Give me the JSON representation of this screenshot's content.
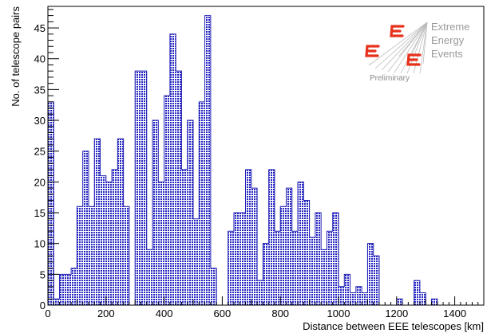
{
  "chart_data": {
    "type": "bar",
    "xlabel": "Distance between EEE telescopes [km]",
    "ylabel": "No. of telescope pairs",
    "xlim": [
      0,
      1500
    ],
    "ylim": [
      0,
      48.5
    ],
    "bin_width": 20,
    "x_ticks": [
      0,
      200,
      400,
      600,
      800,
      1000,
      1200,
      1400
    ],
    "y_ticks": [
      0,
      5,
      10,
      15,
      20,
      25,
      30,
      35,
      40,
      45
    ],
    "values": [
      33,
      1,
      5,
      5,
      6,
      16,
      25,
      16,
      27,
      21,
      20,
      22,
      27,
      16,
      0,
      38,
      38,
      9,
      30,
      20,
      34,
      44,
      38,
      22,
      30,
      14,
      33,
      47,
      6,
      0,
      0,
      12,
      15,
      15,
      22,
      19,
      4,
      10,
      22,
      12,
      16,
      19,
      12,
      20,
      17,
      11,
      15,
      9,
      12,
      15,
      3,
      5,
      2,
      3,
      2,
      10,
      8,
      0,
      0,
      0,
      1,
      0,
      0,
      4,
      2,
      0,
      1,
      0,
      0,
      0,
      0,
      0,
      0,
      0,
      0
    ],
    "fill_color": "#b8b8f0",
    "line_color": "#1f1fb5",
    "legend": "none",
    "grid": false
  },
  "logo": {
    "lines": [
      "Extreme",
      "Energy",
      "Events"
    ],
    "caption": "Preliminary",
    "accent_color": "#e8311b"
  }
}
